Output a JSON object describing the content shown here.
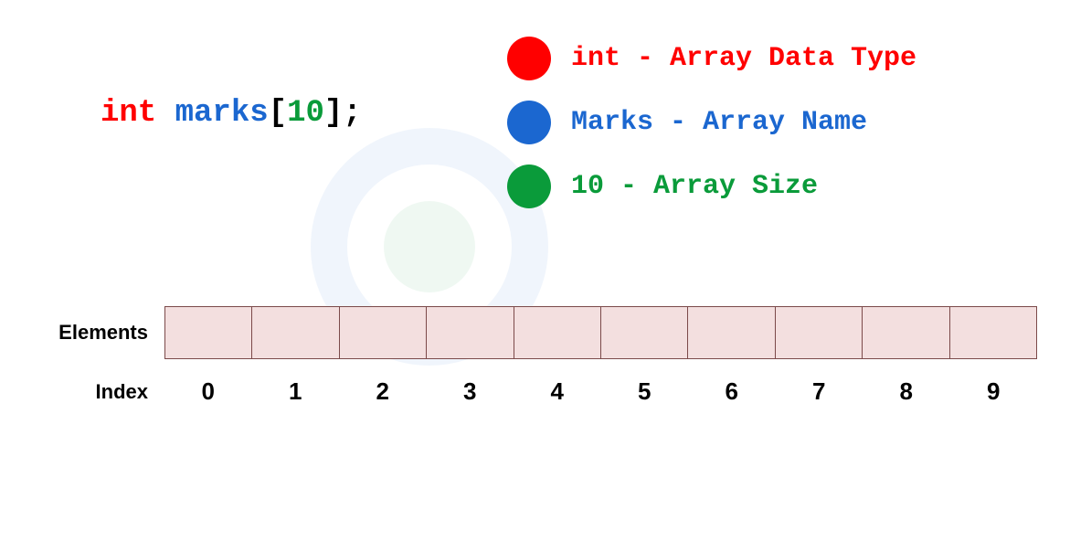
{
  "declaration": {
    "type": "int",
    "space": " ",
    "name": "marks",
    "bracket_open": "[",
    "size": "10",
    "bracket_close": "]",
    "semicolon": ";"
  },
  "legend": {
    "items": [
      {
        "dot_color": "#ff0000",
        "text_color": "#ff0000",
        "label": "int - Array Data Type"
      },
      {
        "dot_color": "#1b67d0",
        "text_color": "#1b67d0",
        "label": "Marks - Array Name"
      },
      {
        "dot_color": "#0a9b3a",
        "text_color": "#0a9b3a",
        "label": "10 - Array Size"
      }
    ]
  },
  "array": {
    "elements_label": "Elements",
    "index_label": "Index",
    "cell_count": 10,
    "cell_bg": "#f3dfdf",
    "cell_border": "#7b4a4a",
    "indices": [
      "0",
      "1",
      "2",
      "3",
      "4",
      "5",
      "6",
      "7",
      "8",
      "9"
    ]
  },
  "watermark": {
    "outer_color": "#1b67d0",
    "inner_color": "#0a9b3a"
  },
  "fonts": {
    "mono": "'Courier New', Courier, monospace",
    "sans": "Arial, Helvetica, sans-serif"
  }
}
